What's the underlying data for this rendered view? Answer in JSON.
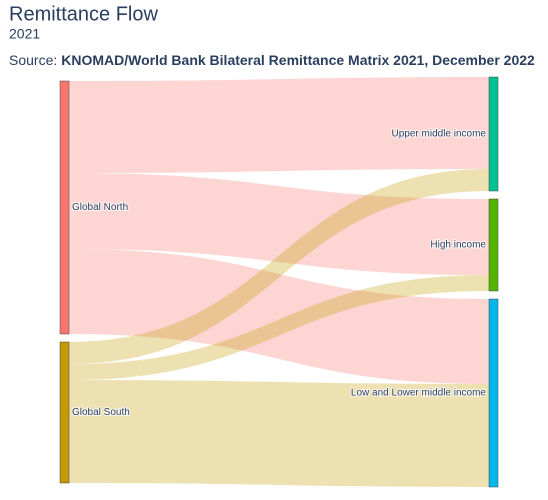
{
  "chart_data": {
    "type": "sankey",
    "title": "Remittance Flow",
    "subtitle": "2021",
    "source_label": "Source:",
    "source": "KNOMAD/World Bank Bilateral Remittance Matrix 2021, December 2022",
    "nodes": [
      {
        "label": "Global North",
        "color": "#f8766d",
        "column": 0
      },
      {
        "label": "Global South",
        "color": "#c49a00",
        "column": 0
      },
      {
        "label": "Upper middle income",
        "color": "#00c094",
        "column": 1
      },
      {
        "label": "High income",
        "color": "#53b400",
        "column": 1
      },
      {
        "label": "Low and Lower middle income",
        "color": "#00b6eb",
        "column": 1
      }
    ],
    "links": [
      {
        "source": 0,
        "target": 2,
        "value": 92,
        "color": "rgba(248,118,109,0.3)"
      },
      {
        "source": 0,
        "target": 3,
        "value": 76,
        "color": "rgba(248,118,109,0.3)"
      },
      {
        "source": 0,
        "target": 4,
        "value": 85,
        "color": "rgba(248,118,109,0.3)"
      },
      {
        "source": 1,
        "target": 2,
        "value": 22,
        "color": "rgba(196,154,0,0.3)"
      },
      {
        "source": 1,
        "target": 3,
        "value": 16,
        "color": "rgba(196,154,0,0.3)"
      },
      {
        "source": 1,
        "target": 4,
        "value": 103,
        "color": "rgba(196,154,0,0.3)"
      }
    ]
  }
}
